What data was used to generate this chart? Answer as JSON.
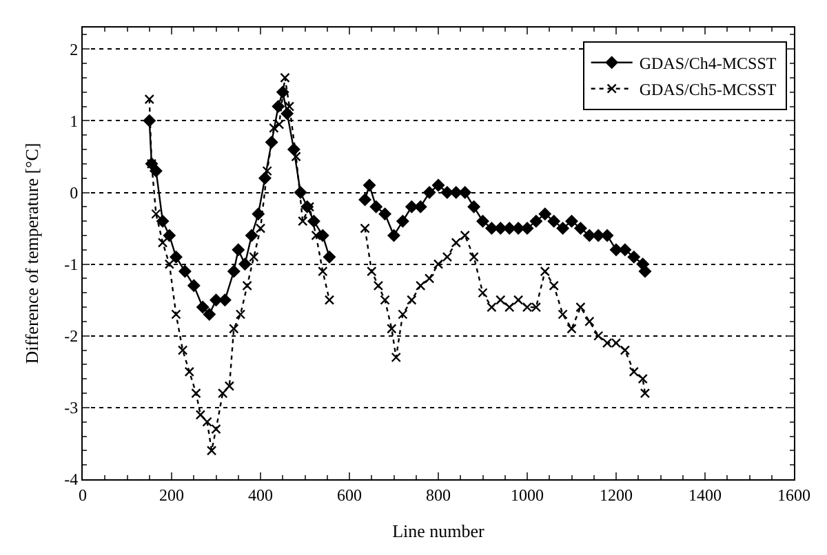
{
  "chart_data": {
    "type": "line",
    "xlabel": "Line number",
    "ylabel": "Difference of temperature [°C]",
    "xlim": [
      0,
      1600
    ],
    "xticks": [
      0,
      200,
      400,
      600,
      800,
      1000,
      1200,
      1400,
      1600
    ],
    "ylim": [
      -4,
      2.3
    ],
    "yticks": [
      -4,
      -3,
      -2,
      -1,
      0,
      1,
      2
    ],
    "grid": "y",
    "legend": "top right",
    "series": [
      {
        "name": "GDAS/Ch4-MCSST",
        "color": "#000000",
        "marker": "diamond",
        "line_style": "solid",
        "x": [
          150,
          155,
          165,
          180,
          195,
          210,
          230,
          250,
          270,
          285,
          300,
          320,
          340,
          350,
          365,
          380,
          395,
          410,
          425,
          440,
          450,
          460,
          475,
          490,
          505,
          520,
          540,
          555,
          590,
          635,
          645,
          660,
          680,
          700,
          720,
          740,
          760,
          780,
          800,
          820,
          840,
          860,
          880,
          900,
          920,
          940,
          960,
          980,
          1000,
          1020,
          1040,
          1060,
          1080,
          1100,
          1120,
          1140,
          1160,
          1180,
          1200,
          1220,
          1240,
          1260,
          1265
        ],
        "values": [
          1.0,
          0.4,
          0.3,
          -0.4,
          -0.6,
          -0.9,
          -1.1,
          -1.3,
          -1.6,
          -1.7,
          -1.5,
          -1.5,
          -1.1,
          -0.8,
          -1.0,
          -0.6,
          -0.3,
          0.2,
          0.7,
          1.2,
          1.4,
          1.1,
          0.6,
          0.0,
          -0.2,
          -0.4,
          -0.6,
          -0.9,
          null,
          -0.1,
          0.1,
          -0.2,
          -0.3,
          -0.6,
          -0.4,
          -0.2,
          -0.2,
          0.0,
          0.1,
          0.0,
          0.0,
          0.0,
          -0.2,
          -0.4,
          -0.5,
          -0.5,
          -0.5,
          -0.5,
          -0.5,
          -0.4,
          -0.3,
          -0.4,
          -0.5,
          -0.4,
          -0.5,
          -0.6,
          -0.6,
          -0.6,
          -0.8,
          -0.8,
          -0.9,
          -1.0,
          -1.1
        ]
      },
      {
        "name": "GDAS/Ch5-MCSST",
        "color": "#000000",
        "marker": "cross",
        "line_style": "dotted",
        "x": [
          150,
          155,
          165,
          180,
          195,
          210,
          225,
          240,
          255,
          265,
          280,
          290,
          300,
          315,
          330,
          340,
          355,
          370,
          385,
          400,
          415,
          430,
          442,
          455,
          465,
          480,
          495,
          510,
          525,
          540,
          555,
          590,
          635,
          650,
          665,
          680,
          695,
          705,
          720,
          740,
          760,
          780,
          800,
          820,
          840,
          860,
          880,
          900,
          920,
          940,
          960,
          980,
          1000,
          1020,
          1040,
          1060,
          1080,
          1100,
          1120,
          1140,
          1160,
          1180,
          1200,
          1220,
          1240,
          1260,
          1265
        ],
        "values": [
          1.3,
          0.4,
          -0.3,
          -0.7,
          -1.0,
          -1.7,
          -2.2,
          -2.5,
          -2.8,
          -3.1,
          -3.2,
          -3.6,
          -3.3,
          -2.8,
          -2.7,
          -1.9,
          -1.7,
          -1.3,
          -0.9,
          -0.5,
          0.3,
          0.9,
          0.95,
          1.6,
          1.2,
          0.5,
          -0.4,
          -0.2,
          -0.6,
          -1.1,
          -1.5,
          null,
          -0.5,
          -1.1,
          -1.3,
          -1.5,
          -1.9,
          -2.3,
          -1.7,
          -1.5,
          -1.3,
          -1.2,
          -1.0,
          -0.9,
          -0.7,
          -0.6,
          -0.9,
          -1.4,
          -1.6,
          -1.5,
          -1.6,
          -1.5,
          -1.6,
          -1.6,
          -1.1,
          -1.3,
          -1.7,
          -1.9,
          -1.6,
          -1.8,
          -2.0,
          -2.1,
          -2.1,
          -2.2,
          -2.5,
          -2.6,
          -2.8
        ]
      }
    ]
  }
}
